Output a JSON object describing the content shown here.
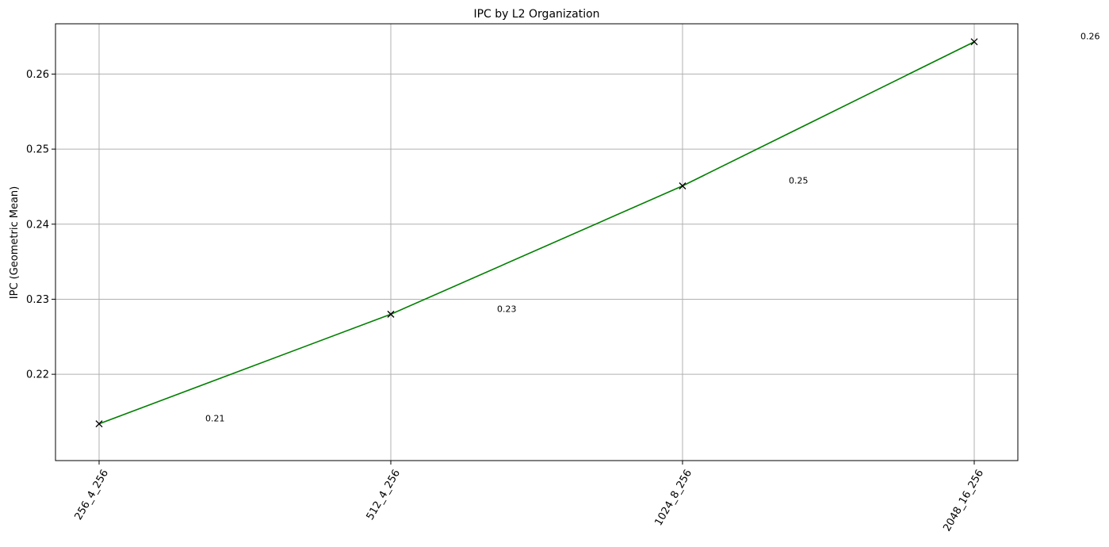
{
  "chart_data": {
    "type": "line",
    "title": "IPC by L2 Organization",
    "xlabel": "",
    "ylabel": "IPC (Geometric Mean)",
    "categories": [
      "256_4_256",
      "512_4_256",
      "1024_8_256",
      "2048_16_256"
    ],
    "series": [
      {
        "name": "",
        "values": [
          0.2134,
          0.228,
          0.2451,
          0.2643
        ],
        "color": "#008000",
        "marker": "x",
        "marker_color": "#000000"
      }
    ],
    "data_labels": [
      "0.21",
      "0.23",
      "0.25",
      "0.26"
    ],
    "ylim": [
      0.2085,
      0.2667
    ],
    "yticks": [
      0.22,
      0.23,
      0.24,
      0.25,
      0.26
    ],
    "ytick_labels": [
      "0.22",
      "0.23",
      "0.24",
      "0.25",
      "0.26"
    ],
    "grid": true,
    "legend": "none",
    "xtick_rotation": -60
  }
}
